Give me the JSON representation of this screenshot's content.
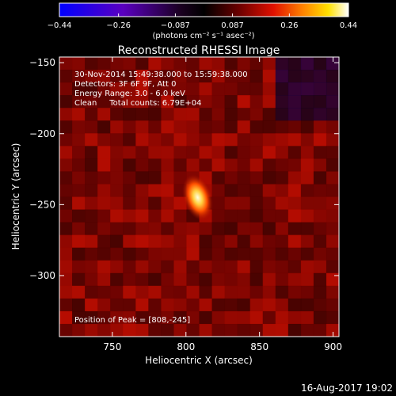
{
  "colorbar": {
    "ticks": [
      "-0.44",
      "-0.26",
      "-0.087",
      "0.087",
      "0.26",
      "0.44"
    ],
    "tick_values": [
      -0.44,
      -0.26,
      -0.087,
      0.087,
      0.26,
      0.44
    ],
    "range": [
      -0.44,
      0.44
    ],
    "unit_label": "(photons cm⁻² s⁻¹ asec⁻²)"
  },
  "chart_data": {
    "type": "heatmap",
    "title": "Reconstructed RHESSI Image",
    "xlabel": "Heliocentric X (arcsec)",
    "ylabel": "Heliocentric Y (arcsec)",
    "xlim": [
      714,
      904
    ],
    "ylim": [
      -343,
      -146
    ],
    "xticks": [
      750,
      800,
      850,
      900
    ],
    "yticks": [
      -150,
      -200,
      -250,
      -300
    ],
    "colormap": "rhessi-hot (blue-purple-black-red-yellow-white)",
    "peak": {
      "x": 808,
      "y": -245,
      "value": 0.44
    },
    "background_level": 0.12,
    "annotations": [
      "30-Nov-2014 15:49:38.000 to 15:59:38.000",
      "Detectors: 3F 6F 9F, Att 0",
      "Energy Range: 3.0 - 6.0 keV",
      "Clean     Total counts: 6.79E+04",
      "Position of Peak = [808,-245]"
    ]
  },
  "footer": {
    "timestamp": "16-Aug-2017 19:02"
  }
}
